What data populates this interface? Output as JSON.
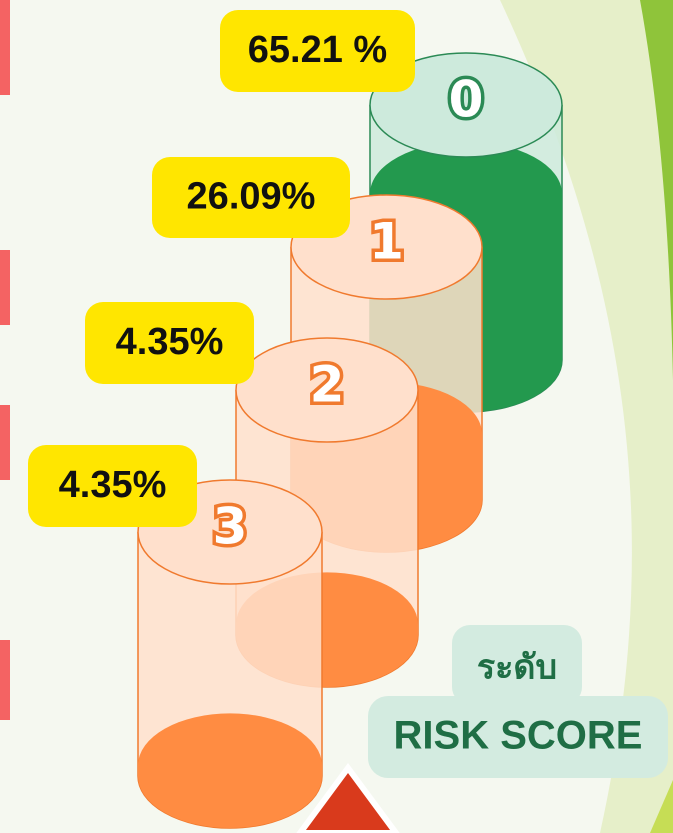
{
  "chart_data": {
    "type": "cylinder",
    "title": "ระดับ",
    "subtitle": "RISK SCORE",
    "categories": [
      "0",
      "1",
      "2",
      "3"
    ],
    "values": [
      65.21,
      26.09,
      4.35,
      4.35
    ],
    "value_labels": [
      "65.21 %",
      "26.09%",
      "4.35%",
      "4.35%"
    ],
    "colors": [
      "#23994e",
      "#ff8c42",
      "#ff8c42",
      "#ff8c42"
    ]
  }
}
